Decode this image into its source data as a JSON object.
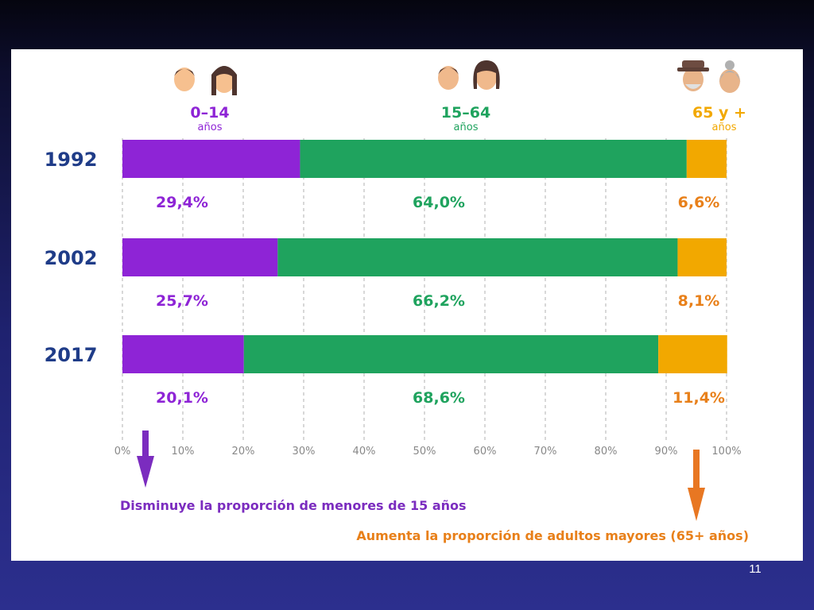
{
  "slide_number": "11",
  "groups": [
    {
      "label": "0–14",
      "sublabel": "años",
      "color": "#8e24d6",
      "icon": "child-faces-icon"
    },
    {
      "label": "15–64",
      "sublabel": "años",
      "color": "#1fa35e",
      "icon": "adult-faces-icon"
    },
    {
      "label": "65 y +",
      "sublabel": "años",
      "color": "#f2a800",
      "icon": "elderly-faces-icon"
    }
  ],
  "chart_data": {
    "type": "bar",
    "orientation": "horizontal",
    "stacked": true,
    "categories": [
      "1992",
      "2002",
      "2017"
    ],
    "series": [
      {
        "name": "0–14 años",
        "values": [
          29.4,
          25.7,
          20.1
        ],
        "labels": [
          "29,4%",
          "25,7%",
          "20,1%"
        ],
        "color": "#8e24d6"
      },
      {
        "name": "15–64 años",
        "values": [
          64.0,
          66.2,
          68.6
        ],
        "labels": [
          "64,0%",
          "66,2%",
          "68,6%"
        ],
        "color": "#1fa35e"
      },
      {
        "name": "65 y + años",
        "values": [
          6.6,
          8.1,
          11.4
        ],
        "labels": [
          "6,6%",
          "8,1%",
          "11,4%"
        ],
        "color": "#f2a800"
      }
    ],
    "xlim": [
      0,
      100
    ],
    "xticks": [
      "0%",
      "10%",
      "20%",
      "30%",
      "40%",
      "50%",
      "60%",
      "70%",
      "80%",
      "90%",
      "100%"
    ],
    "grid": "vertical dashed",
    "annotations": [
      {
        "text": "Disminuye la proporción de menores de 15 años",
        "color": "#7b2cbf",
        "arrow": "down"
      },
      {
        "text": "Aumenta la proporción de adultos mayores (65+ años)",
        "color": "#e8801a",
        "arrow": "down"
      }
    ]
  },
  "colors": {
    "year_label": "#1f3c88",
    "tick": "#888888",
    "grid": "#bdbdbd",
    "old_label": "#e8801a",
    "old_arrow": "#e87722"
  }
}
